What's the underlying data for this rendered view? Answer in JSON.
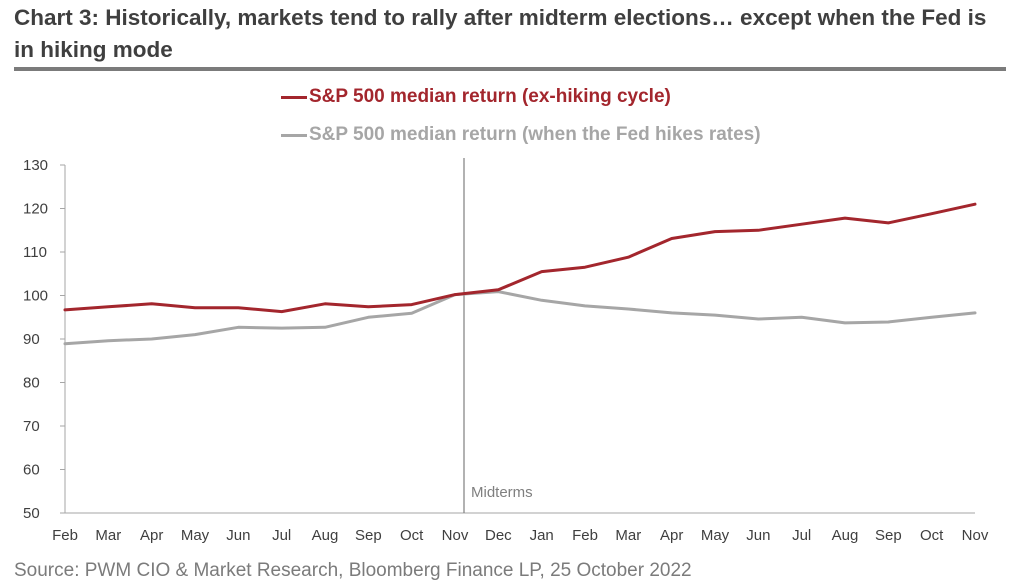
{
  "header": {
    "title": "Chart 3: Historically, markets tend to rally after midterm elections… except when the Fed is in hiking mode"
  },
  "footer": {
    "source": "Source: PWM CIO & Market Research, Bloomberg Finance LP, 25 October 2022"
  },
  "colors": {
    "series_red": "#a3262d",
    "series_grey": "#a6a6a6",
    "axis": "#a6a6a6",
    "text": "#3f3f3f",
    "marker": "#7f7f7f"
  },
  "chart_data": {
    "type": "line",
    "title": "Chart 3: Historically, markets tend to rally after midterm elections… except when the Fed is in hiking mode",
    "xlabel": "",
    "ylabel": "",
    "ylim": [
      50,
      130
    ],
    "yticks": [
      50,
      60,
      70,
      80,
      90,
      100,
      110,
      120,
      130
    ],
    "grid": false,
    "legend_position": "top-center",
    "categories": [
      "Feb",
      "Mar",
      "Apr",
      "May",
      "Jun",
      "Jul",
      "Aug",
      "Sep",
      "Oct",
      "Nov",
      "Dec",
      "Jan",
      "Feb",
      "Mar",
      "Apr",
      "May",
      "Jun",
      "Jul",
      "Aug",
      "Sep",
      "Oct",
      "Nov"
    ],
    "series": [
      {
        "name": "S&P 500 median return (ex-hiking cycle)",
        "color": "#a3262d",
        "values": [
          96.7,
          97.4,
          98.1,
          97.2,
          97.2,
          96.3,
          98.1,
          97.4,
          97.9,
          100.2,
          101.3,
          105.5,
          106.5,
          108.8,
          113.1,
          114.7,
          115.0,
          116.4,
          117.8,
          116.7,
          118.8,
          121.0
        ]
      },
      {
        "name": "S&P 500 median return (when the Fed hikes rates)",
        "color": "#a6a6a6",
        "values": [
          88.9,
          89.6,
          90.0,
          91.0,
          92.7,
          92.5,
          92.7,
          95.0,
          95.9,
          100.2,
          100.9,
          98.9,
          97.6,
          96.9,
          96.0,
          95.5,
          94.6,
          95.0,
          93.7,
          93.9,
          95.0,
          96.0
        ]
      }
    ],
    "annotations": [
      {
        "text": "Midterms",
        "at_category_index": 9
      }
    ]
  }
}
